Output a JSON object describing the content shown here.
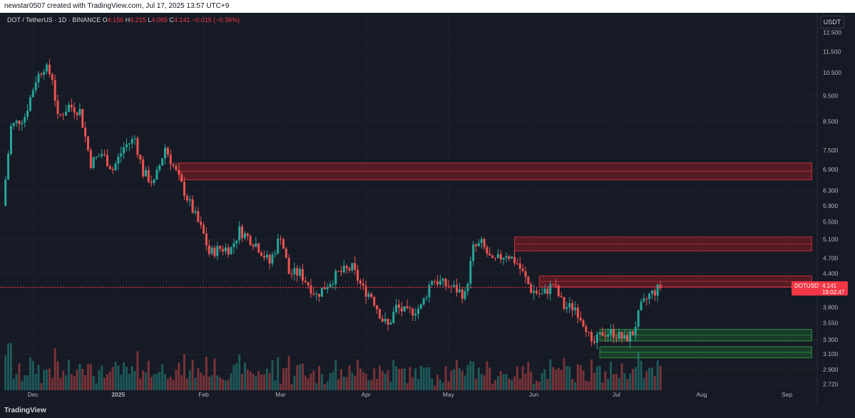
{
  "header": {
    "attribution": "newstar0507 created with TradingView.com, Jul 17, 2025 13:57 UTC+9"
  },
  "legend": {
    "symbol": "DOT / TetherUS · 1D · BINANCE",
    "o_label": "O",
    "o": "4.156",
    "h_label": "H",
    "h": "4.215",
    "l_label": "L",
    "l": "4.065",
    "c_label": "C",
    "c": "4.141",
    "change": "−0.015 (−0.36%)"
  },
  "currency": "USDT",
  "price_tag": {
    "symbol": "DOTUSDT",
    "price": "4.141",
    "countdown": "19:02:47"
  },
  "footer": {
    "brand": "TradingView"
  },
  "colors": {
    "up": "#26a69a",
    "down": "#ef5350",
    "bg": "#161a25",
    "resistance": "#8b1d24",
    "support": "#1e5a2e"
  },
  "chart_data": {
    "type": "candlestick",
    "scale": "log",
    "y_ticks": [
      "12.500",
      "11.500",
      "10.500",
      "9.500",
      "8.500",
      "7.500",
      "6.900",
      "6.300",
      "5.900",
      "5.500",
      "5.100",
      "4.700",
      "4.400",
      "4.141",
      "3.800",
      "3.550",
      "3.300",
      "3.100",
      "2.900",
      "2.720"
    ],
    "x_ticks": [
      "Dec",
      "2025",
      "Feb",
      "Mar",
      "Apr",
      "May",
      "Jun",
      "Jul",
      "Aug",
      "Sep"
    ],
    "ohlc_path": [
      [
        "2024-11-20",
        5.9
      ],
      [
        "2024-11-23",
        8.3
      ],
      [
        "2024-11-28",
        8.7
      ],
      [
        "2024-12-02",
        10.2
      ],
      [
        "2024-12-05",
        10.8
      ],
      [
        "2024-12-08",
        10.3
      ],
      [
        "2024-12-10",
        8.6
      ],
      [
        "2024-12-14",
        9.1
      ],
      [
        "2024-12-18",
        8.9
      ],
      [
        "2024-12-22",
        7.1
      ],
      [
        "2024-12-26",
        7.4
      ],
      [
        "2024-12-30",
        6.9
      ],
      [
        "2025-01-03",
        7.6
      ],
      [
        "2025-01-07",
        7.9
      ],
      [
        "2025-01-10",
        6.8
      ],
      [
        "2025-01-14",
        6.5
      ],
      [
        "2025-01-18",
        7.6
      ],
      [
        "2025-01-21",
        7.0
      ],
      [
        "2025-01-26",
        6.1
      ],
      [
        "2025-02-01",
        5.2
      ],
      [
        "2025-02-03",
        4.8
      ],
      [
        "2025-02-07",
        4.9
      ],
      [
        "2025-02-11",
        4.9
      ],
      [
        "2025-02-14",
        5.3
      ],
      [
        "2025-02-20",
        5.0
      ],
      [
        "2025-02-25",
        4.6
      ],
      [
        "2025-03-01",
        5.2
      ],
      [
        "2025-03-04",
        4.4
      ],
      [
        "2025-03-08",
        4.4
      ],
      [
        "2025-03-11",
        4.2
      ],
      [
        "2025-03-14",
        4.0
      ],
      [
        "2025-03-18",
        4.2
      ],
      [
        "2025-03-22",
        4.4
      ],
      [
        "2025-03-27",
        4.5
      ],
      [
        "2025-03-31",
        4.1
      ],
      [
        "2025-04-03",
        4.0
      ],
      [
        "2025-04-07",
        3.6
      ],
      [
        "2025-04-09",
        3.5
      ],
      [
        "2025-04-12",
        3.8
      ],
      [
        "2025-04-16",
        3.7
      ],
      [
        "2025-04-21",
        3.8
      ],
      [
        "2025-04-25",
        4.3
      ],
      [
        "2025-04-29",
        4.2
      ],
      [
        "2025-05-04",
        4.1
      ],
      [
        "2025-05-07",
        4.0
      ],
      [
        "2025-05-10",
        4.9
      ],
      [
        "2025-05-13",
        5.0
      ],
      [
        "2025-05-17",
        4.6
      ],
      [
        "2025-05-22",
        4.8
      ],
      [
        "2025-05-26",
        4.6
      ],
      [
        "2025-05-31",
        4.1
      ],
      [
        "2025-06-04",
        4.0
      ],
      [
        "2025-06-08",
        4.2
      ],
      [
        "2025-06-12",
        3.8
      ],
      [
        "2025-06-16",
        3.8
      ],
      [
        "2025-06-20",
        3.5
      ],
      [
        "2025-06-22",
        3.2
      ],
      [
        "2025-06-26",
        3.4
      ],
      [
        "2025-06-30",
        3.4
      ],
      [
        "2025-07-04",
        3.3
      ],
      [
        "2025-07-07",
        3.4
      ],
      [
        "2025-07-10",
        3.8
      ],
      [
        "2025-07-13",
        4.0
      ],
      [
        "2025-07-17",
        4.141
      ]
    ],
    "zones": [
      {
        "kind": "resistance",
        "from": "2025-01-23",
        "to": "2025-09-10",
        "low": 6.6,
        "high": 7.1
      },
      {
        "kind": "resistance",
        "from": "2025-05-25",
        "to": "2025-09-10",
        "low": 4.85,
        "high": 5.15
      },
      {
        "kind": "resistance",
        "from": "2025-06-03",
        "to": "2025-09-10",
        "low": 4.15,
        "high": 4.35
      },
      {
        "kind": "support",
        "from": "2025-06-25",
        "to": "2025-09-10",
        "low": 3.28,
        "high": 3.45
      },
      {
        "kind": "support",
        "from": "2025-06-25",
        "to": "2025-09-10",
        "low": 3.05,
        "high": 3.2
      }
    ]
  }
}
